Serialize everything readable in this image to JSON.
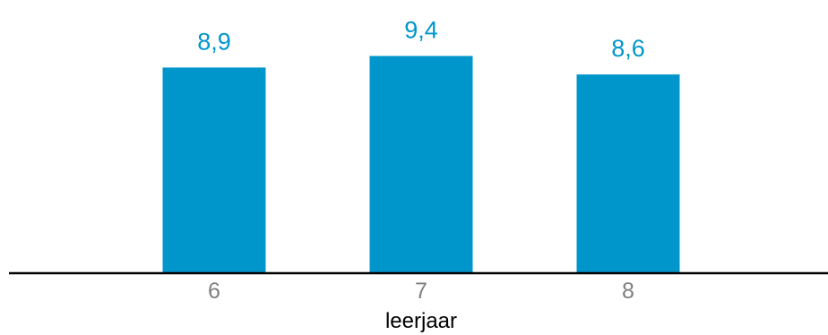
{
  "chart_data": {
    "type": "bar",
    "categories": [
      "6",
      "7",
      "8"
    ],
    "values": [
      8.9,
      9.4,
      8.6
    ],
    "data_labels": [
      "8,9",
      "9,4",
      "8,6"
    ],
    "title": "",
    "xlabel": "leerjaar",
    "ylabel": "",
    "ylim": [
      0,
      10
    ],
    "grid": false,
    "legend": "none",
    "bar_color": "#0096CC",
    "label_color": "#0096CC",
    "axis_color": "#000000",
    "tick_color": "#7F7F7F"
  }
}
